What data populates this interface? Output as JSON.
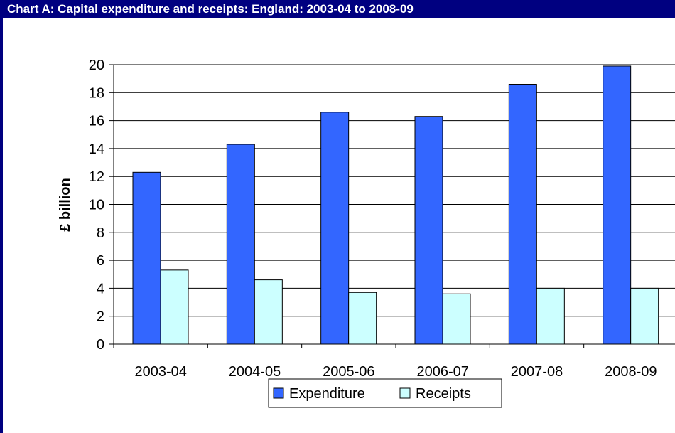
{
  "colors": {
    "title_bar_bg": "#000080",
    "title_text": "#ffffff",
    "expenditure": "#3366ff",
    "receipts": "#ccffff"
  },
  "chart_data": {
    "type": "bar",
    "title": "Chart A: Capital expenditure and receipts: England:  2003-04 to 2008-09",
    "xlabel": "",
    "ylabel": "£ billion",
    "ylim": [
      0,
      20
    ],
    "yticks": [
      0,
      2,
      4,
      6,
      8,
      10,
      12,
      14,
      16,
      18,
      20
    ],
    "grid": true,
    "legend_position": "bottom-center",
    "categories": [
      "2003-04",
      "2004-05",
      "2005-06",
      "2006-07",
      "2007-08",
      "2008-09"
    ],
    "series": [
      {
        "name": "Expenditure",
        "color": "#3366ff",
        "values": [
          12.3,
          14.3,
          16.6,
          16.3,
          18.6,
          19.9
        ]
      },
      {
        "name": "Receipts",
        "color": "#ccffff",
        "values": [
          5.3,
          4.6,
          3.7,
          3.6,
          4.0,
          4.0
        ]
      }
    ]
  }
}
